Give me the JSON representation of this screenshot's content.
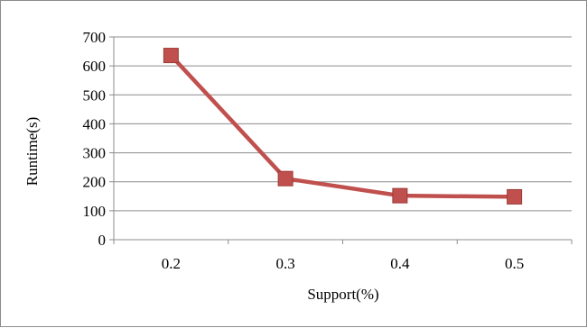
{
  "chart_data": {
    "type": "line",
    "xlabel": "Support(%)",
    "ylabel": "Runtime(s)",
    "categories": [
      "0.2",
      "0.3",
      "0.4",
      "0.5"
    ],
    "series": [
      {
        "values": [
          636,
          211,
          152,
          148
        ],
        "color": "#c0504d"
      }
    ],
    "ylim": [
      0,
      700
    ],
    "yticks": [
      0,
      100,
      200,
      300,
      400,
      500,
      600,
      700
    ],
    "grid": true,
    "marker": "square"
  }
}
